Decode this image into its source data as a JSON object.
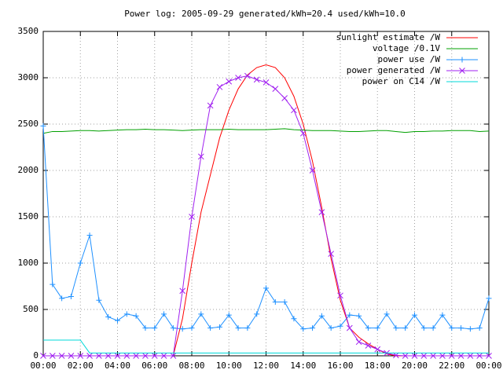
{
  "chart_data": {
    "type": "line",
    "title": "Power log: 2005-09-29 generated/kWh=20.4 used/kWh=10.0",
    "x": [
      0,
      0.5,
      1,
      1.5,
      2,
      2.5,
      3,
      3.5,
      4,
      4.5,
      5,
      5.5,
      6,
      6.5,
      7,
      7.5,
      8,
      8.5,
      9,
      9.5,
      10,
      10.5,
      11,
      11.5,
      12,
      12.5,
      13,
      13.5,
      14,
      14.5,
      15,
      15.5,
      16,
      16.5,
      17,
      17.5,
      18,
      18.5,
      19,
      19.5,
      20,
      20.5,
      21,
      21.5,
      22,
      22.5,
      23,
      23.5,
      24
    ],
    "xlim": [
      0,
      24
    ],
    "xticks": [
      {
        "value": 0,
        "label": "00:00"
      },
      {
        "value": 2,
        "label": "02:00"
      },
      {
        "value": 4,
        "label": "04:00"
      },
      {
        "value": 6,
        "label": "06:00"
      },
      {
        "value": 8,
        "label": "08:00"
      },
      {
        "value": 10,
        "label": "10:00"
      },
      {
        "value": 12,
        "label": "12:00"
      },
      {
        "value": 14,
        "label": "14:00"
      },
      {
        "value": 16,
        "label": "16:00"
      },
      {
        "value": 18,
        "label": "18:00"
      },
      {
        "value": 20,
        "label": "20:00"
      },
      {
        "value": 22,
        "label": "22:00"
      },
      {
        "value": 24,
        "label": "00:00"
      }
    ],
    "ylim": [
      0,
      3500
    ],
    "yticks": [
      0,
      500,
      1000,
      1500,
      2000,
      2500,
      3000,
      3500
    ],
    "grid": true,
    "legend": "top-right",
    "series": [
      {
        "name": "sunlight estimate /W",
        "color": "#ff0000",
        "marker": "none",
        "values": [
          0,
          0,
          0,
          0,
          0,
          0,
          0,
          0,
          0,
          0,
          0,
          0,
          0,
          0,
          0,
          400,
          1000,
          1550,
          1950,
          2350,
          2650,
          2880,
          3030,
          3110,
          3140,
          3110,
          3000,
          2800,
          2500,
          2100,
          1600,
          1050,
          600,
          300,
          200,
          130,
          70,
          20,
          0,
          0,
          0,
          0,
          0,
          0,
          0,
          0,
          0,
          0,
          0
        ]
      },
      {
        "name": "voltage /0.1V",
        "color": "#00a000",
        "marker": "none",
        "values": [
          2400,
          2420,
          2420,
          2425,
          2430,
          2430,
          2425,
          2430,
          2435,
          2440,
          2440,
          2445,
          2440,
          2440,
          2435,
          2430,
          2435,
          2440,
          2440,
          2440,
          2445,
          2440,
          2440,
          2440,
          2440,
          2445,
          2450,
          2440,
          2435,
          2430,
          2430,
          2430,
          2425,
          2420,
          2420,
          2425,
          2430,
          2430,
          2420,
          2410,
          2420,
          2420,
          2425,
          2425,
          2430,
          2430,
          2430,
          2420,
          2425
        ]
      },
      {
        "name": "power use /W",
        "color": "#1e90ff",
        "marker": "plus",
        "values": [
          2480,
          770,
          620,
          640,
          1000,
          1300,
          600,
          420,
          380,
          450,
          430,
          300,
          300,
          450,
          300,
          290,
          300,
          450,
          300,
          310,
          440,
          300,
          300,
          450,
          730,
          580,
          580,
          400,
          290,
          300,
          430,
          300,
          320,
          440,
          430,
          300,
          300,
          450,
          300,
          300,
          440,
          300,
          300,
          440,
          300,
          300,
          290,
          300,
          620
        ]
      },
      {
        "name": "power generated /W",
        "color": "#a020f0",
        "marker": "cross",
        "values": [
          0,
          0,
          0,
          0,
          0,
          0,
          0,
          0,
          0,
          0,
          0,
          0,
          0,
          0,
          0,
          700,
          1500,
          2150,
          2700,
          2900,
          2960,
          3000,
          3020,
          2980,
          2950,
          2880,
          2780,
          2650,
          2400,
          2000,
          1550,
          1100,
          650,
          300,
          150,
          110,
          70,
          30,
          5,
          0,
          0,
          0,
          0,
          0,
          0,
          0,
          0,
          0,
          0
        ]
      },
      {
        "name": "power on C14 /W",
        "color": "#00d8d8",
        "marker": "none",
        "values": [
          170,
          170,
          170,
          170,
          170,
          30,
          30,
          30,
          30,
          30,
          30,
          30,
          30,
          30,
          30,
          30,
          30,
          30,
          30,
          30,
          30,
          30,
          30,
          30,
          30,
          30,
          30,
          30,
          30,
          30,
          30,
          30,
          30,
          30,
          30,
          30,
          30,
          30,
          30,
          30,
          30,
          30,
          30,
          30,
          30,
          30,
          30,
          30,
          30
        ]
      }
    ]
  }
}
